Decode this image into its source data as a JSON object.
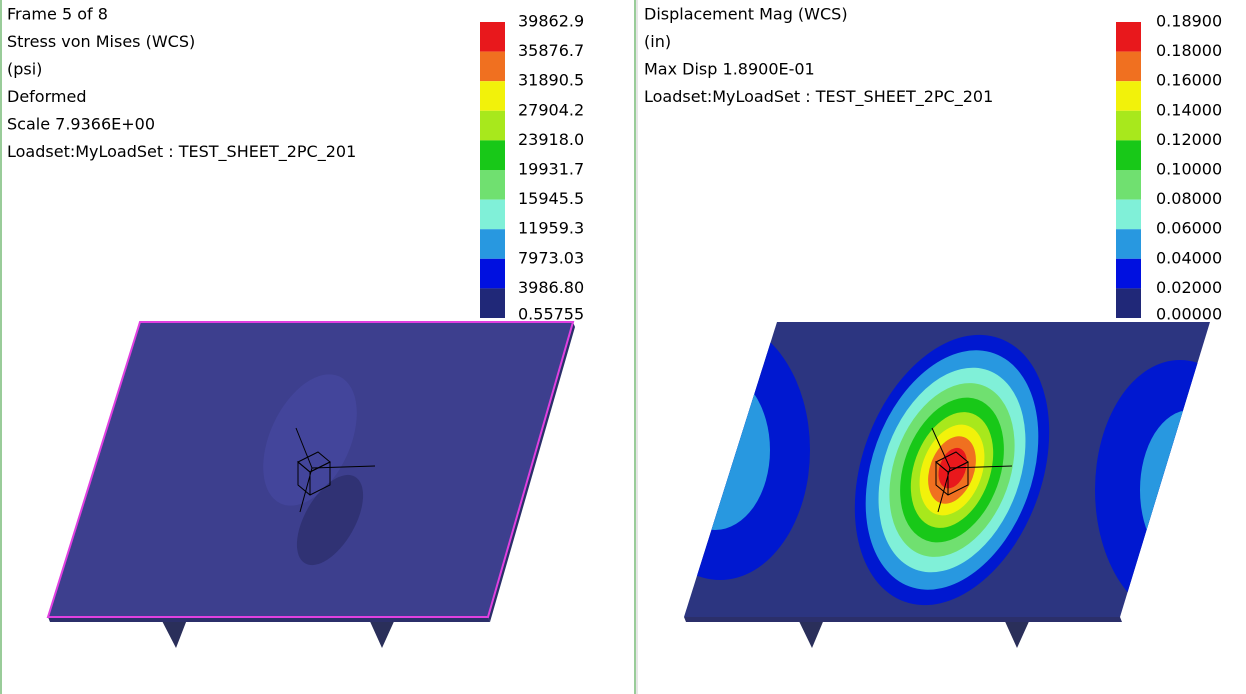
{
  "left": {
    "lines": [
      "Frame 5 of 8",
      "Stress von Mises (WCS)",
      "(psi)",
      "Deformed",
      "Scale  7.9366E+00",
      "Loadset:MyLoadSet :  TEST_SHEET_2PC_201"
    ],
    "legend": {
      "labels": [
        "39862.9",
        "35876.7",
        "31890.5",
        "27904.2",
        "23918.0",
        "19931.7",
        "15945.5",
        "11959.3",
        "7973.03",
        "3986.80",
        "0.55755"
      ]
    }
  },
  "right": {
    "lines": [
      "Displacement Mag (WCS)",
      "(in)",
      "Max Disp  1.8900E-01",
      "Loadset:MyLoadSet :  TEST_SHEET_2PC_201"
    ],
    "legend": {
      "labels": [
        "0.18900",
        "0.18000",
        "0.16000",
        "0.14000",
        "0.12000",
        "0.10000",
        "0.08000",
        "0.06000",
        "0.04000",
        "0.02000",
        "0.00000"
      ]
    }
  },
  "legend_colors": [
    "#e8181c",
    "#f07020",
    "#f2f20a",
    "#a8e81c",
    "#18c818",
    "#70e070",
    "#80f0d8",
    "#2898e0",
    "#0010e0",
    "#202878"
  ]
}
